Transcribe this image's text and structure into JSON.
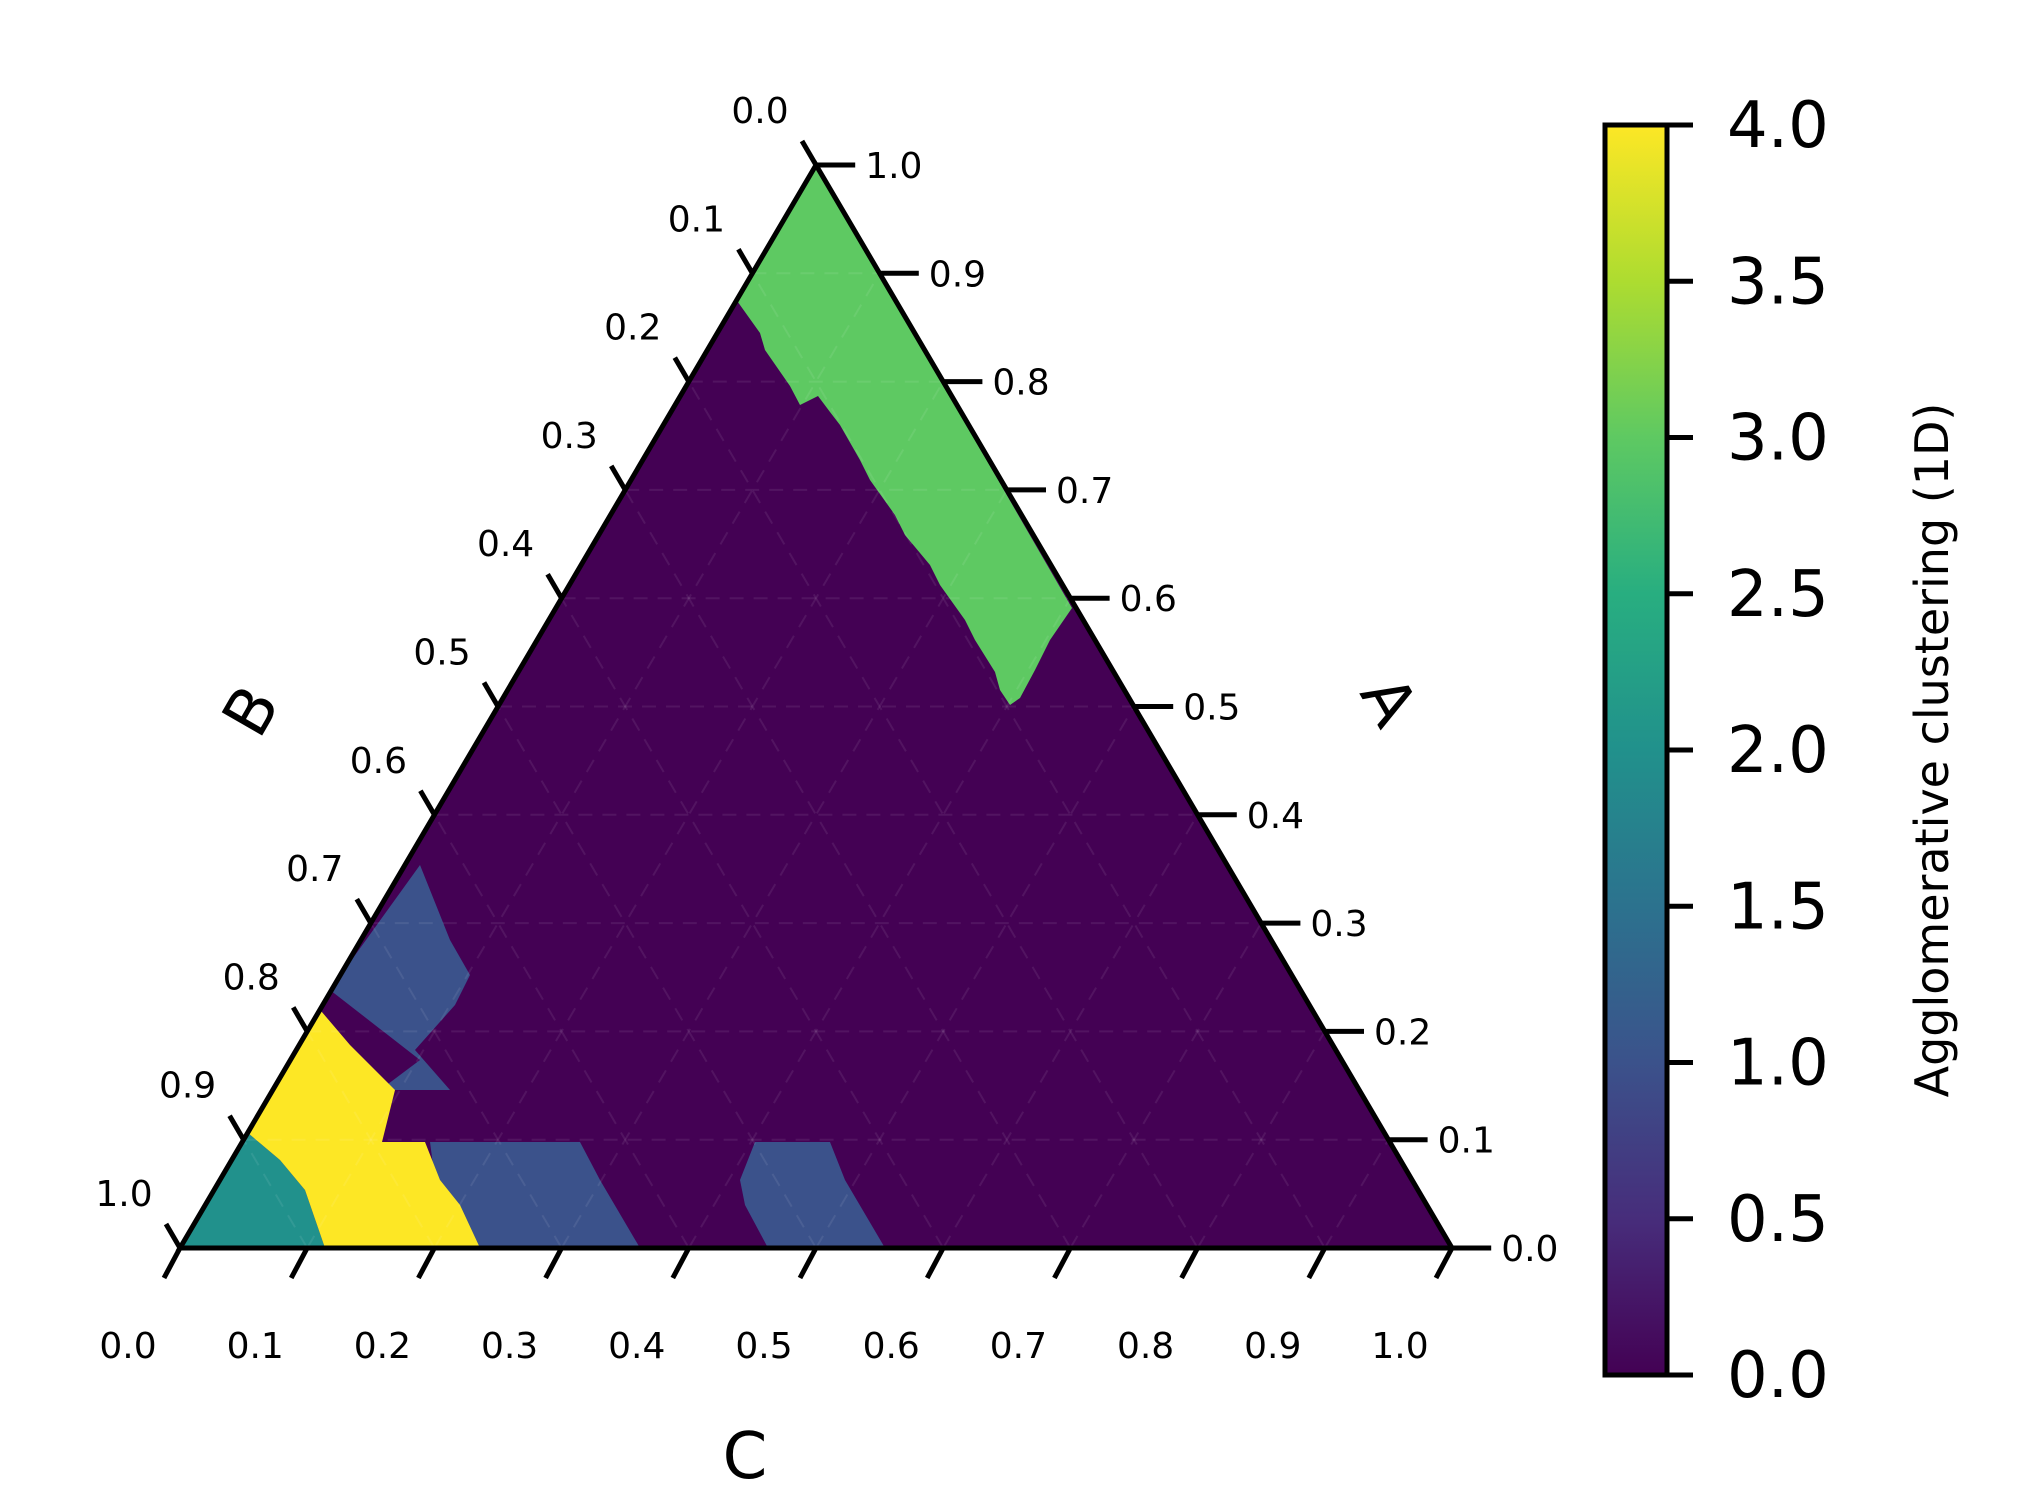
{
  "chart_data": {
    "type": "heatmap",
    "subtype": "ternary",
    "axes": {
      "A": {
        "label": "A",
        "side": "right",
        "ticks": [
          "0.0",
          "0.1",
          "0.2",
          "0.3",
          "0.4",
          "0.5",
          "0.6",
          "0.7",
          "0.8",
          "0.9",
          "1.0"
        ]
      },
      "B": {
        "label": "B",
        "side": "left",
        "ticks": [
          "0.0",
          "0.1",
          "0.2",
          "0.3",
          "0.4",
          "0.5",
          "0.6",
          "0.7",
          "0.8",
          "0.9",
          "1.0"
        ]
      },
      "C": {
        "label": "C",
        "side": "bottom",
        "ticks": [
          "0.0",
          "0.1",
          "0.2",
          "0.3",
          "0.4",
          "0.5",
          "0.6",
          "0.7",
          "0.8",
          "0.9",
          "1.0"
        ]
      }
    },
    "colorbar": {
      "label": "Agglomerative clustering (1D)",
      "range": [
        0.0,
        4.0
      ],
      "ticks": [
        "0.0",
        "0.5",
        "1.0",
        "1.5",
        "2.0",
        "2.5",
        "3.0",
        "3.5",
        "4.0"
      ],
      "colormap": "viridis"
    },
    "grid": true,
    "regions": [
      {
        "cluster": 0,
        "description": "background (most of the simplex)"
      },
      {
        "cluster": 1,
        "A_range": [
          0.0,
          0.35
        ],
        "B_range": [
          0.55,
          0.9
        ],
        "C_range": [
          0.05,
          0.3
        ]
      },
      {
        "cluster": 1,
        "A_range": [
          0.0,
          0.1
        ],
        "C_range": [
          0.24,
          0.44
        ]
      },
      {
        "cluster": 1,
        "A_range": [
          0.0,
          0.07
        ],
        "C_range": [
          0.45,
          0.55
        ]
      },
      {
        "cluster": 2,
        "A_range": [
          0.0,
          0.1
        ],
        "C_range": [
          0.0,
          0.12
        ]
      },
      {
        "cluster": 3,
        "A_range": [
          0.5,
          1.0
        ],
        "B_range": [
          0.0,
          0.2
        ]
      },
      {
        "cluster": 4,
        "A_range": [
          0.0,
          0.23
        ],
        "C_range": [
          0.05,
          0.24
        ]
      }
    ],
    "colors": {
      "0": "#440154",
      "1": "#3b528b",
      "2": "#21918c",
      "3": "#5ec962",
      "4": "#fde725"
    }
  }
}
